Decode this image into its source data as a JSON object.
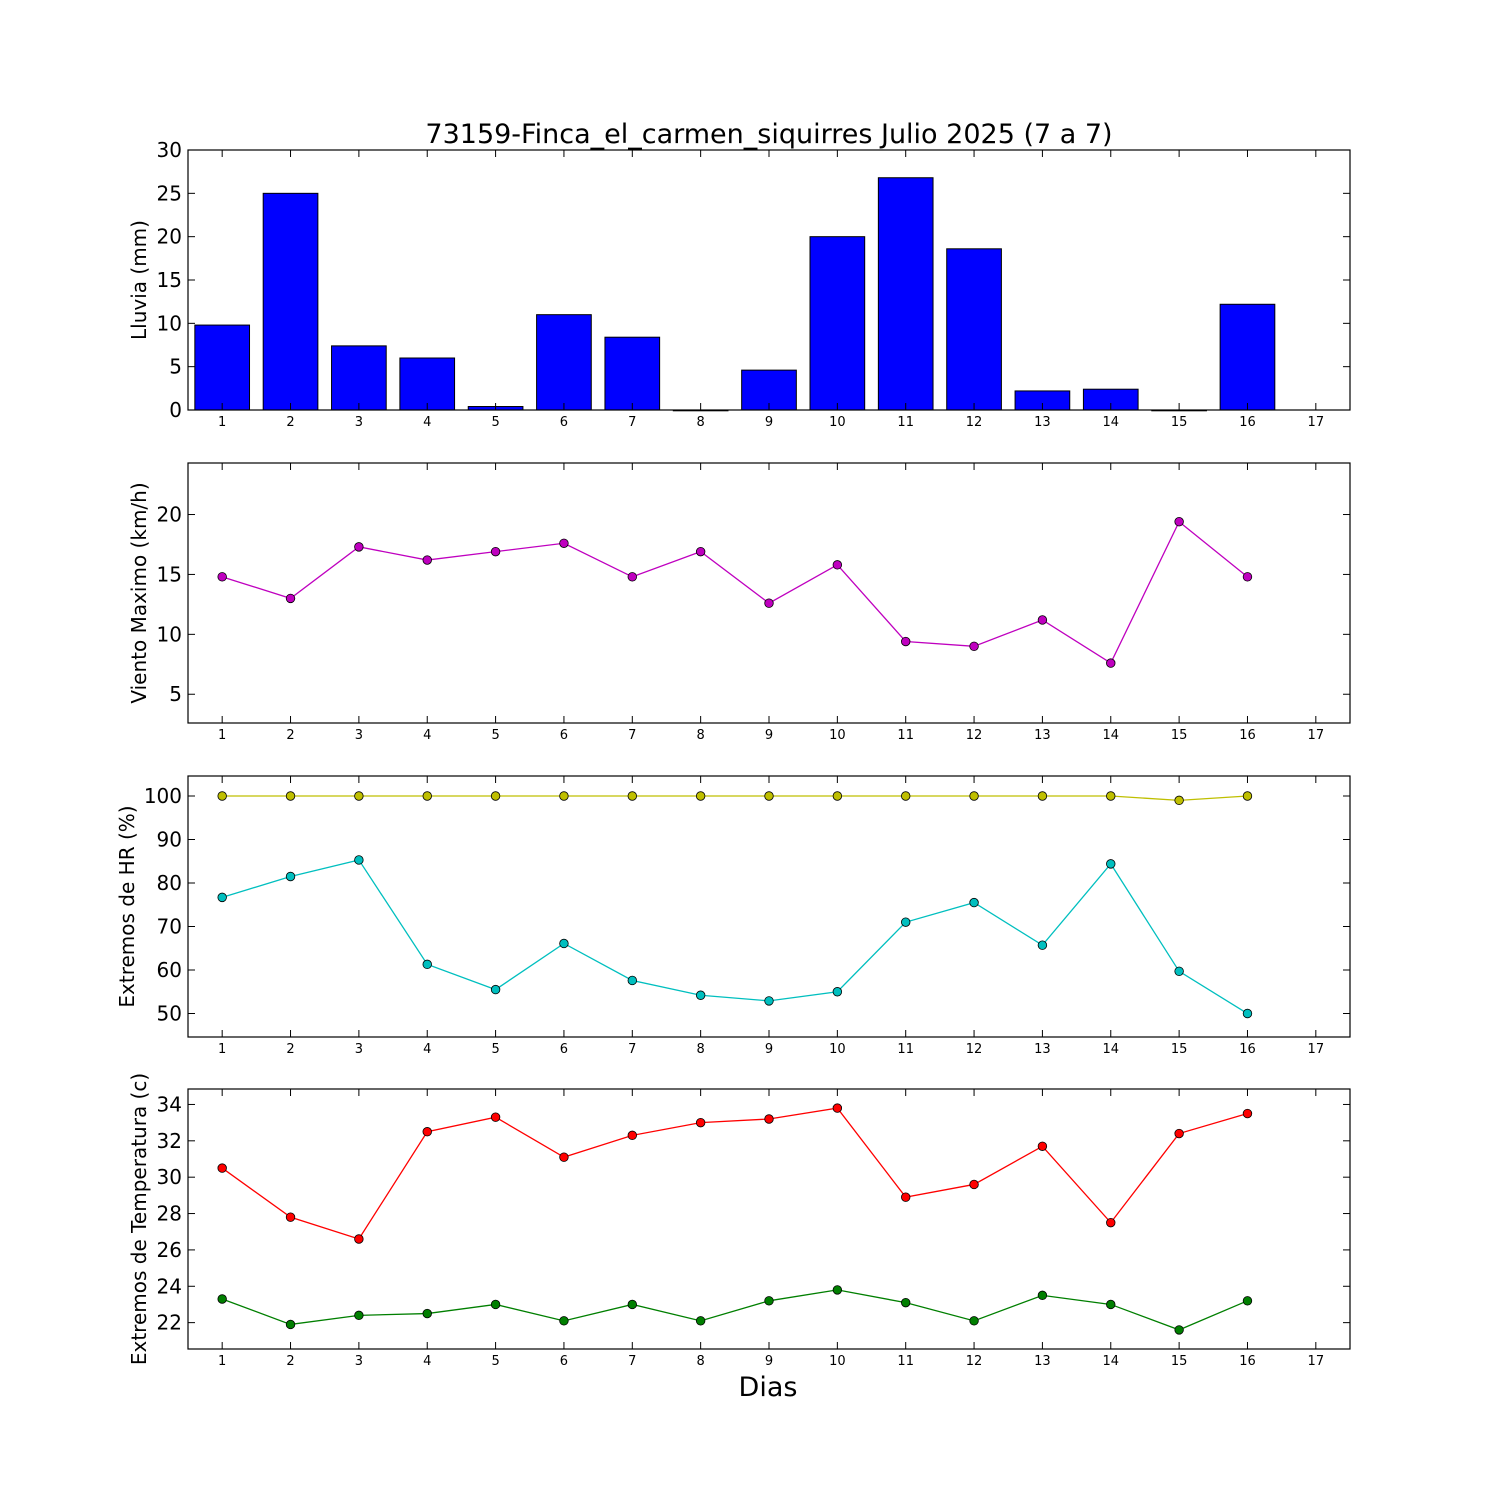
{
  "chart_data": [
    {
      "type": "bar",
      "title": "73159-Finca_el_carmen_siquirres Julio 2025  (7 a 7)",
      "ylabel": "Lluvia (mm)",
      "xlabel": "",
      "x_ticks": [
        "1",
        "2",
        "3",
        "4",
        "5",
        "6",
        "7",
        "8",
        "9",
        "10",
        "11",
        "12",
        "13",
        "14",
        "15",
        "16",
        "17"
      ],
      "y_ticks": [
        "0",
        "5",
        "10",
        "15",
        "20",
        "25",
        "30"
      ],
      "ylim": [
        0,
        30
      ],
      "grid": false,
      "series": [
        {
          "color": "#0000ff",
          "x": [
            1,
            2,
            3,
            4,
            5,
            6,
            7,
            8,
            9,
            10,
            11,
            12,
            13,
            14,
            15,
            16
          ],
          "values": [
            9.8,
            25.0,
            7.4,
            6.0,
            0.4,
            11.0,
            8.4,
            0.0,
            4.6,
            20.0,
            26.8,
            18.6,
            2.2,
            2.4,
            0.0,
            12.2
          ]
        }
      ]
    },
    {
      "type": "line",
      "title": "",
      "ylabel": "Viento Maximo (km/h)",
      "xlabel": "",
      "x_ticks": [
        "1",
        "2",
        "3",
        "4",
        "5",
        "6",
        "7",
        "8",
        "9",
        "10",
        "11",
        "12",
        "13",
        "14",
        "15",
        "16",
        "17"
      ],
      "y_ticks": [
        "5",
        "10",
        "15",
        "20"
      ],
      "ylim": [
        2.6,
        24.3
      ],
      "grid": false,
      "series": [
        {
          "color": "#bf00bf",
          "x": [
            1,
            2,
            3,
            4,
            5,
            6,
            7,
            8,
            9,
            10,
            11,
            12,
            13,
            14,
            15,
            16
          ],
          "values": [
            14.8,
            13.0,
            17.3,
            16.2,
            16.9,
            17.6,
            14.8,
            16.9,
            12.6,
            15.8,
            9.4,
            9.0,
            11.2,
            7.6,
            19.4,
            14.8
          ]
        }
      ]
    },
    {
      "type": "line",
      "title": "",
      "ylabel": "Extremos de HR (%)",
      "xlabel": "",
      "x_ticks": [
        "1",
        "2",
        "3",
        "4",
        "5",
        "6",
        "7",
        "8",
        "9",
        "10",
        "11",
        "12",
        "13",
        "14",
        "15",
        "16",
        "17"
      ],
      "y_ticks": [
        "50",
        "60",
        "70",
        "80",
        "90",
        "100"
      ],
      "ylim": [
        44.6,
        104.6
      ],
      "grid": false,
      "series": [
        {
          "color": "#bfbf00",
          "x": [
            1,
            2,
            3,
            4,
            5,
            6,
            7,
            8,
            9,
            10,
            11,
            12,
            13,
            14,
            15,
            16
          ],
          "values": [
            100,
            100,
            100,
            100,
            100,
            100,
            100,
            100,
            100,
            100,
            100,
            100,
            100,
            100,
            99,
            100
          ]
        },
        {
          "color": "#00bfbf",
          "x": [
            1,
            2,
            3,
            4,
            5,
            6,
            7,
            8,
            9,
            10,
            11,
            12,
            13,
            14,
            15,
            16
          ],
          "values": [
            76.7,
            81.5,
            85.3,
            61.3,
            55.5,
            66.1,
            57.6,
            54.2,
            52.9,
            55.0,
            71.0,
            75.5,
            65.7,
            84.4,
            59.7,
            50.0
          ]
        }
      ]
    },
    {
      "type": "line",
      "title": "",
      "ylabel": "Extremos de Temperatura (c)",
      "xlabel": "Dias",
      "x_ticks": [
        "1",
        "2",
        "3",
        "4",
        "5",
        "6",
        "7",
        "8",
        "9",
        "10",
        "11",
        "12",
        "13",
        "14",
        "15",
        "16",
        "17"
      ],
      "y_ticks": [
        "22",
        "24",
        "26",
        "28",
        "30",
        "32",
        "34"
      ],
      "ylim": [
        20.55,
        34.85
      ],
      "grid": false,
      "series": [
        {
          "color": "#ff0000",
          "x": [
            1,
            2,
            3,
            4,
            5,
            6,
            7,
            8,
            9,
            10,
            11,
            12,
            13,
            14,
            15,
            16
          ],
          "values": [
            30.5,
            27.8,
            26.6,
            32.5,
            33.3,
            31.1,
            32.3,
            33.0,
            33.2,
            33.8,
            28.9,
            29.6,
            31.7,
            27.5,
            32.4,
            33.5
          ]
        },
        {
          "color": "#007f00",
          "x": [
            1,
            2,
            3,
            4,
            5,
            6,
            7,
            8,
            9,
            10,
            11,
            12,
            13,
            14,
            15,
            16
          ],
          "values": [
            23.3,
            21.9,
            22.4,
            22.5,
            23.0,
            22.1,
            23.0,
            22.1,
            23.2,
            23.8,
            23.1,
            22.1,
            23.5,
            23.0,
            21.6,
            23.2
          ]
        }
      ]
    }
  ]
}
